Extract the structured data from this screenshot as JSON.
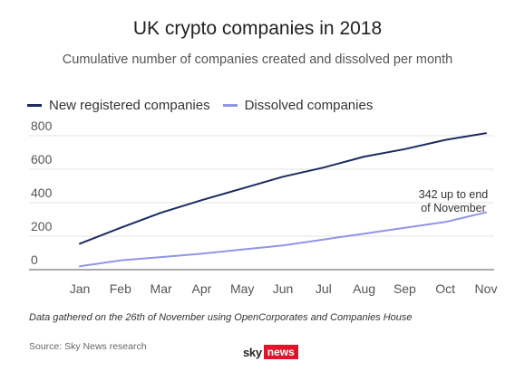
{
  "chart_data": {
    "type": "line",
    "title": "UK crypto companies in 2018",
    "subtitle": "Cumulative number of companies created and dissolved per month",
    "categories": [
      "Jan",
      "Feb",
      "Mar",
      "Apr",
      "May",
      "Jun",
      "Jul",
      "Aug",
      "Sep",
      "Oct",
      "Nov"
    ],
    "series": [
      {
        "name": "New registered companies",
        "color": "#1b2b5e",
        "values": [
          155,
          250,
          340,
          415,
          485,
          555,
          610,
          675,
          720,
          775,
          815
        ]
      },
      {
        "name": "Dissolved companies",
        "color": "#8f96e6",
        "values": [
          20,
          55,
          75,
          95,
          120,
          145,
          180,
          215,
          250,
          285,
          342
        ]
      }
    ],
    "yticks": [
      0,
      200,
      400,
      600,
      800
    ],
    "ylim": [
      0,
      850
    ],
    "grid": true,
    "legend_position": "top-left",
    "annotation": {
      "lines": [
        "342 up to end",
        "of November"
      ],
      "category": "Nov",
      "series": "Dissolved companies"
    }
  },
  "footer": {
    "note": "Data gathered on the 26th of November using OpenCorporates and Companies House",
    "source": "Source: Sky News research",
    "logo_sky": "sky",
    "logo_news": "news"
  }
}
